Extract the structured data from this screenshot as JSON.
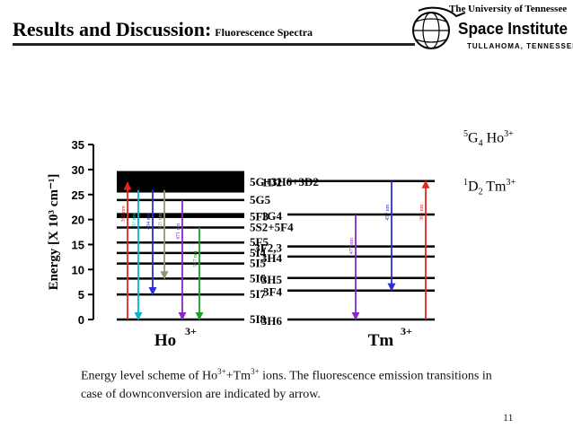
{
  "slide": {
    "title_main": "Results and Discussion:",
    "title_sub": "Fluorescence Spectra",
    "caption_line1_a": "Energy level scheme of Ho",
    "caption_sup1": "3+",
    "caption_line1_b": "+Tm",
    "caption_sup2": "3+",
    "caption_line1_c": " ions. The fluorescence emission transitions in",
    "caption_line2": "case of downconversion are indicated by arrow.",
    "page_number": "11"
  },
  "logo": {
    "line1": "The University of Tennessee",
    "line2": "Space Institute",
    "line3": "TULLAHOMA, TENNESSEE",
    "color": "#000000"
  },
  "side_labels": {
    "ho": {
      "sup": "5",
      "main": "G",
      "sub": "4",
      "ion": " Ho",
      "charge": "3+"
    },
    "tm": {
      "sup": "1",
      "main": "D",
      "sub": "2",
      "ion": " Tm",
      "charge": "3+"
    }
  },
  "chart_data": {
    "type": "energy-level-diagram",
    "ylabel": "Energy [X 10³ cm⁻¹]",
    "ylim": [
      0,
      35
    ],
    "y_ticks": [
      0,
      5,
      10,
      15,
      20,
      25,
      30,
      35
    ],
    "ions": [
      {
        "name": "Ho",
        "charge": "3+",
        "levels": [
          {
            "label": "5I8",
            "energy": 0
          },
          {
            "label": "5I7",
            "energy": 5
          },
          {
            "label": "5I6",
            "energy": 8.2
          },
          {
            "label": "5I5",
            "energy": 11.2
          },
          {
            "label": "5I4",
            "energy": 13.3
          },
          {
            "label": "5F5",
            "energy": 15.4
          },
          {
            "label": "5S2+5F4",
            "energy": 18.4
          },
          {
            "label": "5F3",
            "energy": 20.6
          },
          {
            "label": "5G5",
            "energy": 23.9
          },
          {
            "label": "5G+3H6+3D2",
            "energy": 27.5
          }
        ],
        "bands": [
          [
            20.3,
            21.3
          ],
          [
            25.4,
            29.7
          ]
        ],
        "transitions": [
          {
            "label": "365 nm",
            "from": 0,
            "to": 27.4,
            "color": "#e8261f"
          },
          {
            "label": "3? nm",
            "from": 25.9,
            "to": 0,
            "color": "#00b7c9"
          },
          {
            "label": "404 nm",
            "from": 25.9,
            "to": 5,
            "color": "#2b2fd6"
          },
          {
            "label": "505 nm",
            "from": 25.9,
            "to": 8.2,
            "color": "#8a9a70"
          },
          {
            "label": "471 nm",
            "from": 23.9,
            "to": 0,
            "color": "#8b24c9"
          },
          {
            "label": "547 nm",
            "from": 18.4,
            "to": 0,
            "color": "#1e9e2a"
          }
        ]
      },
      {
        "name": "Tm",
        "charge": "3+",
        "levels": [
          {
            "label": "3H6",
            "energy": 0
          },
          {
            "label": "3F4",
            "energy": 5.8
          },
          {
            "label": "3H5",
            "energy": 8.3
          },
          {
            "label": "3H4",
            "energy": 12.6
          },
          {
            "label": "3F2,3",
            "energy": 14.6
          },
          {
            "label": "1G4",
            "energy": 21.0
          },
          {
            "label": "1D2",
            "energy": 27.7
          }
        ],
        "transitions": [
          {
            "label": "477 nm",
            "from": 21.0,
            "to": 0,
            "color": "#8b24c9"
          },
          {
            "label": "457 nm",
            "from": 27.7,
            "to": 5.8,
            "color": "#2b2fd6"
          },
          {
            "label": "365 nm",
            "from": 0,
            "to": 27.7,
            "color": "#e8261f"
          }
        ]
      }
    ]
  }
}
